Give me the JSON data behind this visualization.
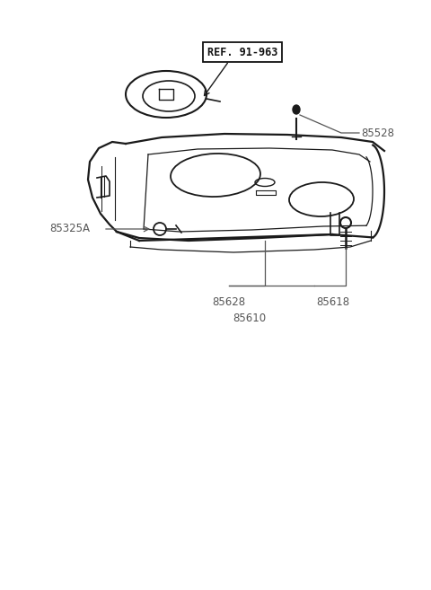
{
  "bg_color": "#ffffff",
  "line_color": "#1a1a1a",
  "text_color": "#555555",
  "ref_text": "REF. 91-963",
  "label_85528": "85528",
  "label_85325A": "85325A",
  "label_85628": "85628",
  "label_85618": "85618",
  "label_85610": "85610",
  "figsize": [
    4.8,
    6.57
  ],
  "dpi": 100
}
